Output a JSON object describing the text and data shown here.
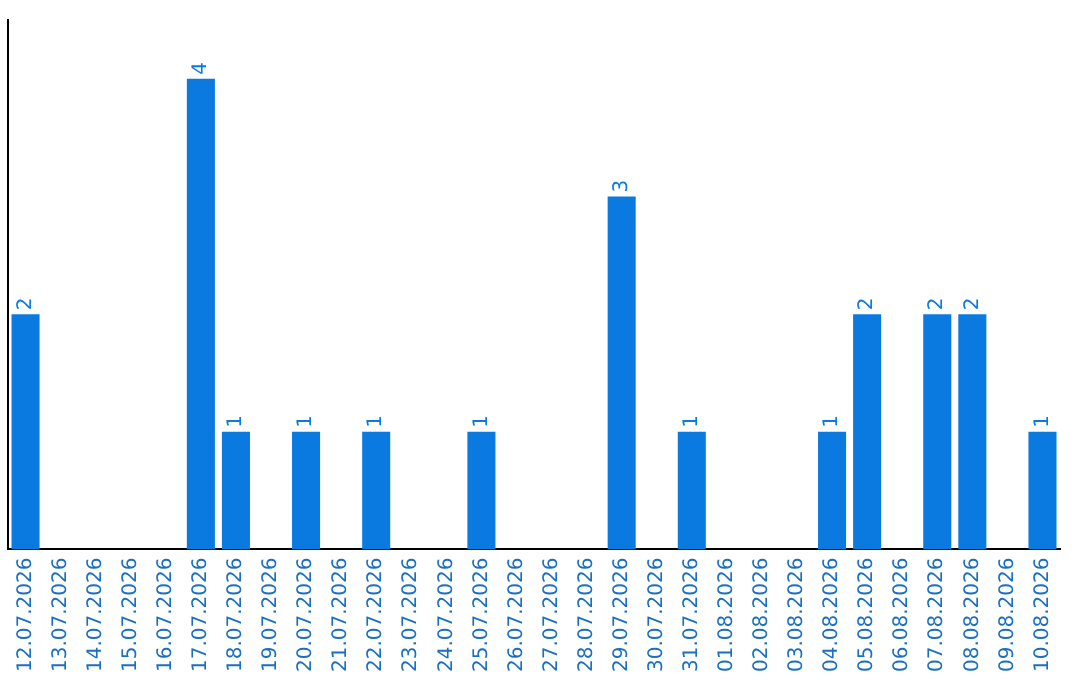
{
  "chart_data": {
    "type": "bar",
    "categories": [
      "12.07.2026",
      "13.07.2026",
      "14.07.2026",
      "15.07.2026",
      "16.07.2026",
      "17.07.2026",
      "18.07.2026",
      "19.07.2026",
      "20.07.2026",
      "21.07.2026",
      "22.07.2026",
      "23.07.2026",
      "24.07.2026",
      "25.07.2026",
      "26.07.2026",
      "27.07.2026",
      "28.07.2026",
      "29.07.2026",
      "30.07.2026",
      "31.07.2026",
      "01.08.2026",
      "02.08.2026",
      "03.08.2026",
      "04.08.2026",
      "05.08.2026",
      "06.08.2026",
      "07.08.2026",
      "08.08.2026",
      "09.08.2026",
      "10.08.2026"
    ],
    "values": [
      2,
      0,
      0,
      0,
      0,
      4,
      1,
      0,
      1,
      0,
      1,
      0,
      0,
      1,
      0,
      0,
      0,
      3,
      0,
      1,
      0,
      0,
      0,
      1,
      2,
      0,
      2,
      2,
      0,
      1
    ],
    "value_labels": [
      "2",
      null,
      null,
      null,
      null,
      "4",
      "1",
      null,
      "1",
      null,
      "1",
      null,
      null,
      "1",
      null,
      null,
      null,
      "3",
      null,
      "1",
      null,
      null,
      null,
      "1",
      "2",
      null,
      "2",
      "2",
      null,
      "1"
    ],
    "color": "#0a7ae0",
    "tick_labels": "x",
    "grid": false,
    "legend": false
  }
}
